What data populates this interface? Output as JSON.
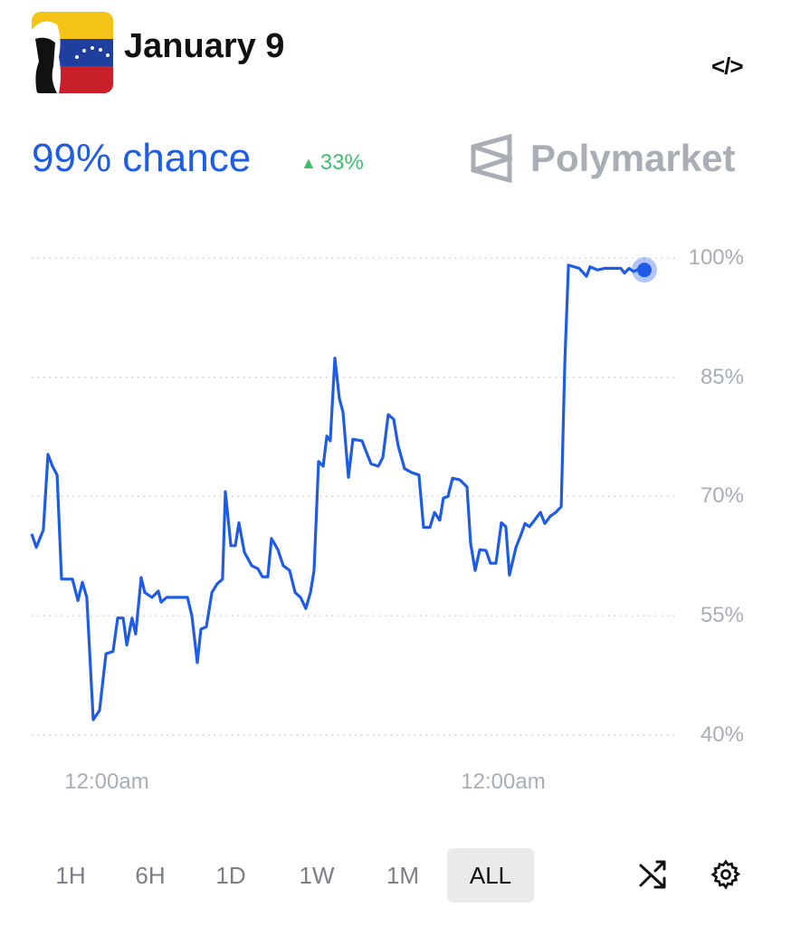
{
  "header": {
    "title": "January 9",
    "embed_icon": "code-icon"
  },
  "summary": {
    "chance": "99% chance",
    "change": "33%",
    "change_direction": "up",
    "brand": "Polymarket"
  },
  "colors": {
    "line": "#1f5ce6",
    "up": "#3cbf6b",
    "muted": "#a8adb6"
  },
  "chart_data": {
    "type": "line",
    "xlabel": "",
    "ylabel": "",
    "x_unit": "hours",
    "xticks": [
      {
        "value": 0,
        "label": "12:00am"
      },
      {
        "value": 24,
        "label": "12:00am"
      }
    ],
    "yticks": [
      {
        "value": 100,
        "label": "100%"
      },
      {
        "value": 85,
        "label": "85%"
      },
      {
        "value": 70,
        "label": "70%"
      },
      {
        "value": 55,
        "label": "55%"
      },
      {
        "value": 40,
        "label": "40%"
      }
    ],
    "ylim": [
      40,
      100
    ],
    "grid": true,
    "series": [
      {
        "points": [
          [
            -4.55,
            65.3
          ],
          [
            -4.27,
            63.6
          ],
          [
            -3.84,
            65.8
          ],
          [
            -3.56,
            75.3
          ],
          [
            -3.29,
            73.8
          ],
          [
            -3.01,
            72.7
          ],
          [
            -2.74,
            59.6
          ],
          [
            -2.08,
            59.6
          ],
          [
            -1.75,
            56.9
          ],
          [
            -1.48,
            59.2
          ],
          [
            -1.21,
            57.3
          ],
          [
            -0.82,
            41.9
          ],
          [
            -0.44,
            43.1
          ],
          [
            -0.05,
            50.2
          ],
          [
            0.38,
            50.5
          ],
          [
            0.66,
            54.7
          ],
          [
            0.99,
            54.7
          ],
          [
            1.21,
            51.3
          ],
          [
            1.53,
            54.7
          ],
          [
            1.75,
            52.7
          ],
          [
            2.08,
            59.8
          ],
          [
            2.3,
            57.9
          ],
          [
            2.74,
            57.3
          ],
          [
            3.12,
            58.1
          ],
          [
            3.29,
            56.7
          ],
          [
            3.62,
            57.3
          ],
          [
            3.95,
            57.3
          ],
          [
            4.49,
            57.3
          ],
          [
            4.88,
            57.3
          ],
          [
            5.15,
            55.0
          ],
          [
            5.48,
            49.1
          ],
          [
            5.7,
            53.3
          ],
          [
            6.03,
            53.6
          ],
          [
            6.36,
            57.9
          ],
          [
            6.68,
            59.0
          ],
          [
            7.01,
            59.6
          ],
          [
            7.18,
            70.6
          ],
          [
            7.51,
            63.8
          ],
          [
            7.78,
            63.8
          ],
          [
            8.0,
            66.7
          ],
          [
            8.33,
            63.0
          ],
          [
            8.77,
            61.3
          ],
          [
            9.15,
            60.9
          ],
          [
            9.42,
            59.9
          ],
          [
            9.75,
            59.9
          ],
          [
            9.97,
            64.7
          ],
          [
            10.36,
            63.3
          ],
          [
            10.68,
            61.3
          ],
          [
            11.07,
            60.7
          ],
          [
            11.4,
            57.9
          ],
          [
            11.73,
            57.3
          ],
          [
            12.05,
            55.9
          ],
          [
            12.33,
            57.9
          ],
          [
            12.55,
            60.7
          ],
          [
            12.82,
            74.4
          ],
          [
            13.1,
            73.8
          ],
          [
            13.32,
            77.6
          ],
          [
            13.53,
            77.0
          ],
          [
            13.81,
            87.4
          ],
          [
            14.08,
            82.3
          ],
          [
            14.3,
            80.6
          ],
          [
            14.63,
            72.4
          ],
          [
            14.9,
            77.2
          ],
          [
            15.45,
            77.0
          ],
          [
            15.73,
            75.5
          ],
          [
            16.0,
            74.1
          ],
          [
            16.44,
            73.8
          ],
          [
            16.71,
            74.9
          ],
          [
            17.04,
            80.3
          ],
          [
            17.37,
            79.7
          ],
          [
            17.64,
            76.4
          ],
          [
            18.03,
            73.5
          ],
          [
            18.47,
            73.0
          ],
          [
            18.9,
            72.7
          ],
          [
            19.18,
            66.1
          ],
          [
            19.56,
            66.1
          ],
          [
            19.84,
            68.0
          ],
          [
            20.16,
            67.0
          ],
          [
            20.38,
            69.8
          ],
          [
            20.66,
            70.0
          ],
          [
            20.93,
            72.3
          ],
          [
            21.37,
            72.1
          ],
          [
            21.81,
            71.2
          ],
          [
            22.03,
            64.1
          ],
          [
            22.3,
            60.7
          ],
          [
            22.58,
            63.3
          ],
          [
            22.96,
            63.2
          ],
          [
            23.23,
            61.6
          ],
          [
            23.56,
            61.6
          ],
          [
            23.89,
            66.7
          ],
          [
            24.16,
            66.2
          ],
          [
            24.38,
            60.1
          ],
          [
            24.77,
            63.6
          ],
          [
            25.04,
            65.0
          ],
          [
            25.32,
            66.6
          ],
          [
            25.59,
            66.2
          ],
          [
            25.86,
            66.9
          ],
          [
            26.25,
            68.0
          ],
          [
            26.52,
            66.6
          ],
          [
            26.85,
            67.5
          ],
          [
            27.18,
            68.0
          ],
          [
            27.51,
            68.7
          ],
          [
            27.73,
            86.9
          ],
          [
            27.95,
            99.1
          ],
          [
            28.6,
            98.7
          ],
          [
            29.04,
            97.7
          ],
          [
            29.26,
            98.9
          ],
          [
            29.7,
            98.5
          ],
          [
            30.14,
            98.7
          ],
          [
            30.68,
            98.7
          ],
          [
            31.12,
            98.7
          ],
          [
            31.34,
            98.1
          ],
          [
            31.62,
            98.7
          ],
          [
            31.89,
            98.3
          ],
          [
            32.22,
            98.6
          ],
          [
            32.55,
            98.5
          ]
        ]
      }
    ]
  },
  "ranges": [
    {
      "label": "1H"
    },
    {
      "label": "6H"
    },
    {
      "label": "1D"
    },
    {
      "label": "1W"
    },
    {
      "label": "1M"
    },
    {
      "label": "ALL",
      "selected": true
    }
  ],
  "controls": {
    "shuffle_icon": "shuffle-icon",
    "settings_icon": "gear-icon"
  }
}
